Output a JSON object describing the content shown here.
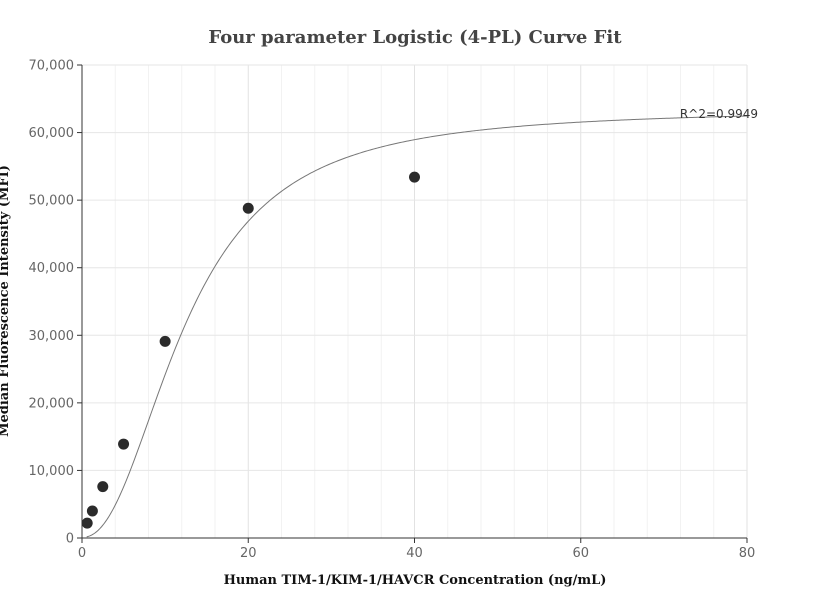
{
  "chart_data": {
    "type": "scatter",
    "title": "Four parameter Logistic (4-PL) Curve Fit",
    "xlabel": "Human TIM-1/KIM-1/HAVCR Concentration (ng/mL)",
    "ylabel": "Median Fluorescence Intensity (MFI)",
    "xlim": [
      0,
      80
    ],
    "ylim": [
      0,
      70000
    ],
    "x_ticks": [
      0,
      20,
      40,
      60,
      80
    ],
    "x_tick_labels": [
      "0",
      "20",
      "40",
      "60",
      "80"
    ],
    "y_ticks": [
      0,
      10000,
      20000,
      30000,
      40000,
      50000,
      60000,
      70000
    ],
    "y_tick_labels": [
      "0",
      "10,000",
      "20,000",
      "30,000",
      "40,000",
      "50,000",
      "60,000",
      "70,000"
    ],
    "grid": true,
    "points": {
      "x": [
        0.625,
        1.25,
        2.5,
        5,
        10,
        20,
        40
      ],
      "y": [
        2200,
        4000,
        7600,
        13900,
        29100,
        48800,
        53400
      ]
    },
    "fit_curve": {
      "model": "4PL",
      "params": {
        "A": 100,
        "B": 2.2,
        "C": 12.5,
        "D": 63500
      }
    },
    "annotation": "R^2=0.9949",
    "colors": {
      "points": "#2b2b2b",
      "curve": "#777777",
      "grid": "#e6e6e6",
      "axis": "#333333"
    }
  }
}
